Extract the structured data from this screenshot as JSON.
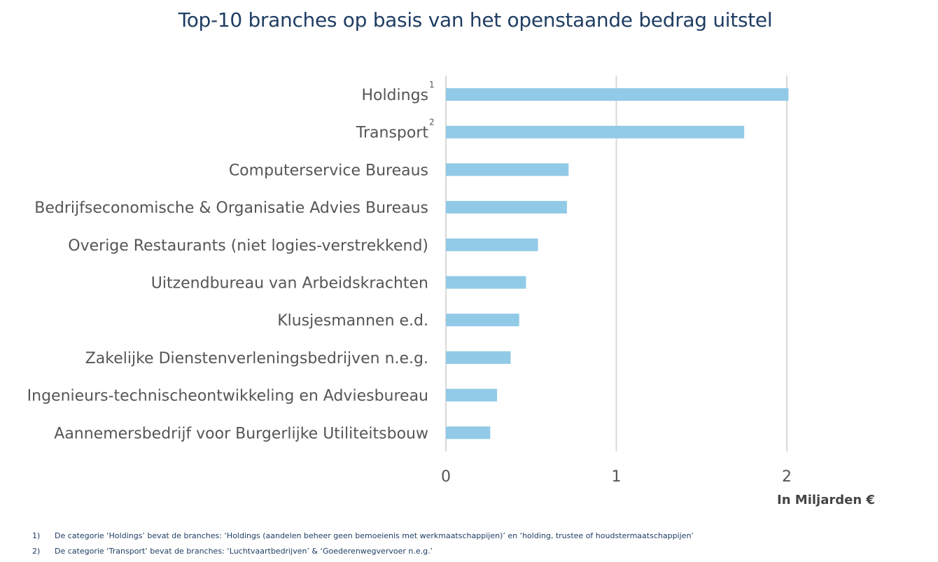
{
  "chart_data": {
    "type": "bar",
    "orientation": "horizontal",
    "title": "Top-10 branches op basis van het openstaande bedrag uitstel",
    "xlabel": "In Miljarden €",
    "ylabel": "",
    "xlim": [
      0,
      2.5
    ],
    "xticks": [
      "0",
      "1",
      "2"
    ],
    "grid": true,
    "categories": [
      "Holdings",
      "Transport",
      "Computerservice Bureaus",
      "Bedrijfseconomische & Organisatie Advies Bureaus",
      "Overige Restaurants (niet logies-verstrekkend)",
      "Uitzendbureau van Arbeidskrachten",
      "Klusjesmannen e.d.",
      "Zakelijke Dienstenverleningsbedrijven n.e.g.",
      "Ingenieurs-technischeontwikkeling en Adviesbureau",
      "Aannemersbedrijf voor Burgerlijke Utiliteitsbouw"
    ],
    "category_footnote_marks": [
      "1",
      "2",
      "",
      "",
      "",
      "",
      "",
      "",
      "",
      ""
    ],
    "values": [
      2.01,
      1.75,
      0.72,
      0.71,
      0.54,
      0.47,
      0.43,
      0.38,
      0.3,
      0.26
    ],
    "bar_color": "#91cae6",
    "grid_color": "#d9d9d9",
    "title_color": "#1f3d63",
    "label_color": "#555555"
  },
  "footnotes": [
    {
      "num": "1)",
      "text": "De categorie ‘Holdings’ bevat de branches: ‘Holdings (aandelen beheer geen bemoeienis met werkmaatschappijen)’ en ‘holding, trustee of houdstermaatschappijen’"
    },
    {
      "num": "2)",
      "text": "De categorie ‘Transport’ bevat de branches: ‘Luchtvaartbedrijven’ & ‘Goederenwegvervoer n.e.g.’"
    }
  ]
}
